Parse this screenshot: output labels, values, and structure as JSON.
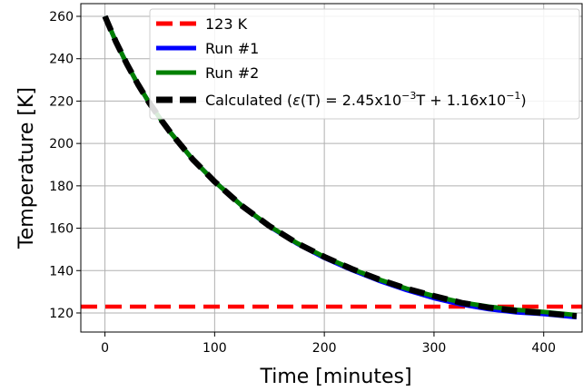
{
  "chart_data": {
    "type": "line",
    "xlabel": "Time [minutes]",
    "ylabel": "Temperature [K]",
    "xlim": [
      -22,
      435
    ],
    "ylim": [
      111,
      266
    ],
    "xticks": [
      0,
      100,
      200,
      300,
      400
    ],
    "yticks": [
      120,
      140,
      160,
      180,
      200,
      220,
      240,
      260
    ],
    "xtick_labels": [
      "0",
      "100",
      "200",
      "300",
      "400"
    ],
    "ytick_labels": [
      "120",
      "140",
      "160",
      "180",
      "200",
      "220",
      "240",
      "260"
    ],
    "grid": true,
    "legend_position": "top-right",
    "series": [
      {
        "name": "123 K",
        "color": "#ff0000",
        "style": "dashed",
        "x": [
          -22,
          435
        ],
        "y": [
          123,
          123
        ]
      },
      {
        "name": "Run #1",
        "color": "#0000ff",
        "style": "solid",
        "x": [
          0,
          10,
          20,
          30,
          40,
          50,
          60,
          80,
          100,
          125,
          150,
          175,
          200,
          225,
          250,
          275,
          300,
          325,
          350,
          375,
          400,
          430
        ],
        "y": [
          260,
          248,
          237.5,
          228,
          219.5,
          212,
          205,
          192.5,
          182,
          170.5,
          160.8,
          152.8,
          146,
          140.3,
          135.2,
          130.8,
          127,
          124,
          121.8,
          120.3,
          119.5,
          118
        ]
      },
      {
        "name": "Run #2",
        "color": "#008000",
        "style": "solid",
        "x": [
          0,
          10,
          20,
          30,
          40,
          50,
          60,
          80,
          100,
          125,
          150,
          175,
          200,
          225,
          250,
          275,
          300,
          325,
          350,
          375,
          400,
          430
        ],
        "y": [
          260,
          248,
          237.5,
          228,
          219.5,
          212,
          205,
          192.5,
          182,
          170.5,
          161,
          153,
          146.5,
          140.8,
          135.8,
          131.5,
          128,
          125,
          123,
          121.5,
          120.5,
          119
        ]
      },
      {
        "name_parts": [
          "Calculated (",
          "ε",
          "(T) = 2.45x10",
          "−3",
          "T + 1.16x10",
          "−1",
          ")"
        ],
        "color": "#000000",
        "style": "dashed",
        "x": [
          0,
          10,
          20,
          30,
          40,
          50,
          60,
          80,
          100,
          125,
          150,
          175,
          200,
          225,
          250,
          275,
          300,
          325,
          350,
          375,
          400,
          430
        ],
        "y": [
          260,
          248,
          237.5,
          228,
          219.5,
          212,
          205,
          192.5,
          182,
          170.5,
          161,
          153,
          146.5,
          140.8,
          135.8,
          131.5,
          128,
          124.8,
          122.5,
          121,
          120,
          118.5
        ]
      }
    ]
  }
}
